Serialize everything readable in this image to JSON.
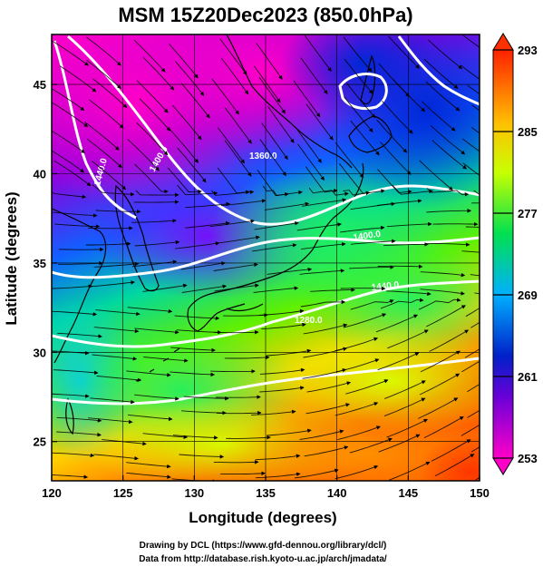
{
  "title": "MSM 15Z20Dec2023 (850.0hPa)",
  "xlabel": "Longitude (degrees)",
  "ylabel": "Latitude  (degrees)",
  "x_ticks": [
    "120",
    "125",
    "130",
    "135",
    "140",
    "145",
    "150"
  ],
  "y_ticks": [
    "25",
    "30",
    "35",
    "40",
    "45"
  ],
  "colorbar": {
    "ticks": [
      "253",
      "261",
      "269",
      "277",
      "285",
      "293"
    ],
    "min": 253,
    "max": 293
  },
  "contour_labels": [
    "1400.0",
    "1360.0",
    "1400.0",
    "1440.0",
    "1280.0",
    "1440.0"
  ],
  "credits": {
    "line1": "Drawing by DCL (https://www.gfd-dennou.org/library/dcl/)",
    "line2": "Data from http://database.rish.kyoto-u.ac.jp/arch/jmadata/"
  },
  "colors": {
    "cold": "#ff00c8",
    "cool": "#0030e0",
    "mid": "#00e060",
    "warm": "#ffe000",
    "hot": "#ff3000",
    "contour": "#ffffff",
    "coast": "#000000"
  }
}
